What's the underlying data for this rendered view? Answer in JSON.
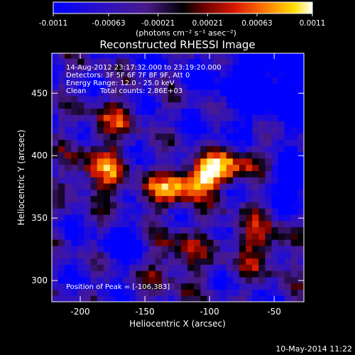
{
  "chart_data": {
    "type": "heatmap",
    "title": "Reconstructed RHESSI Image",
    "xlabel": "Heliocentric X (arcsec)",
    "ylabel": "Heliocentric Y (arcsec)",
    "xlim": [
      -222,
      -27
    ],
    "ylim": [
      283,
      482
    ],
    "x_ticks": [
      -200,
      -150,
      -100,
      -50
    ],
    "y_ticks": [
      300,
      350,
      400,
      450
    ],
    "colorbar": {
      "range": [
        -0.0011,
        0.0011
      ],
      "tick_values": [
        -0.0011,
        -0.00063,
        -0.00021,
        0.00021,
        0.00063,
        0.0011
      ],
      "tick_labels": [
        "-0.0011",
        "-0.00063",
        "-0.00021",
        "0.00021",
        "0.00063",
        "0.0011"
      ],
      "unit_label": "(photons cm⁻² s⁻¹ asec⁻²)",
      "colors": [
        "#0000ff",
        "#3000c0",
        "#5a1a8a",
        "#000000",
        "#7a0000",
        "#e02000",
        "#ff8800",
        "#ffe000",
        "#ffffff"
      ]
    },
    "annotations": {
      "time_range": "14-Aug-2012 23:17:32.000 to 23:19:20.000",
      "detectors": "Detectors: 3F 5F 6F 7F 8F 9F, Att 0",
      "energy_range": "Energy Range: 12.0 - 25.0 keV",
      "method": "Clean",
      "total_counts": "Total counts: 2.86E+03",
      "peak": "Position of Peak = [-106,383]"
    },
    "peak_position": [
      -106,
      383
    ],
    "peak_value": 0.0011
  },
  "footer": {
    "date": "10-May-2014 11:22"
  }
}
